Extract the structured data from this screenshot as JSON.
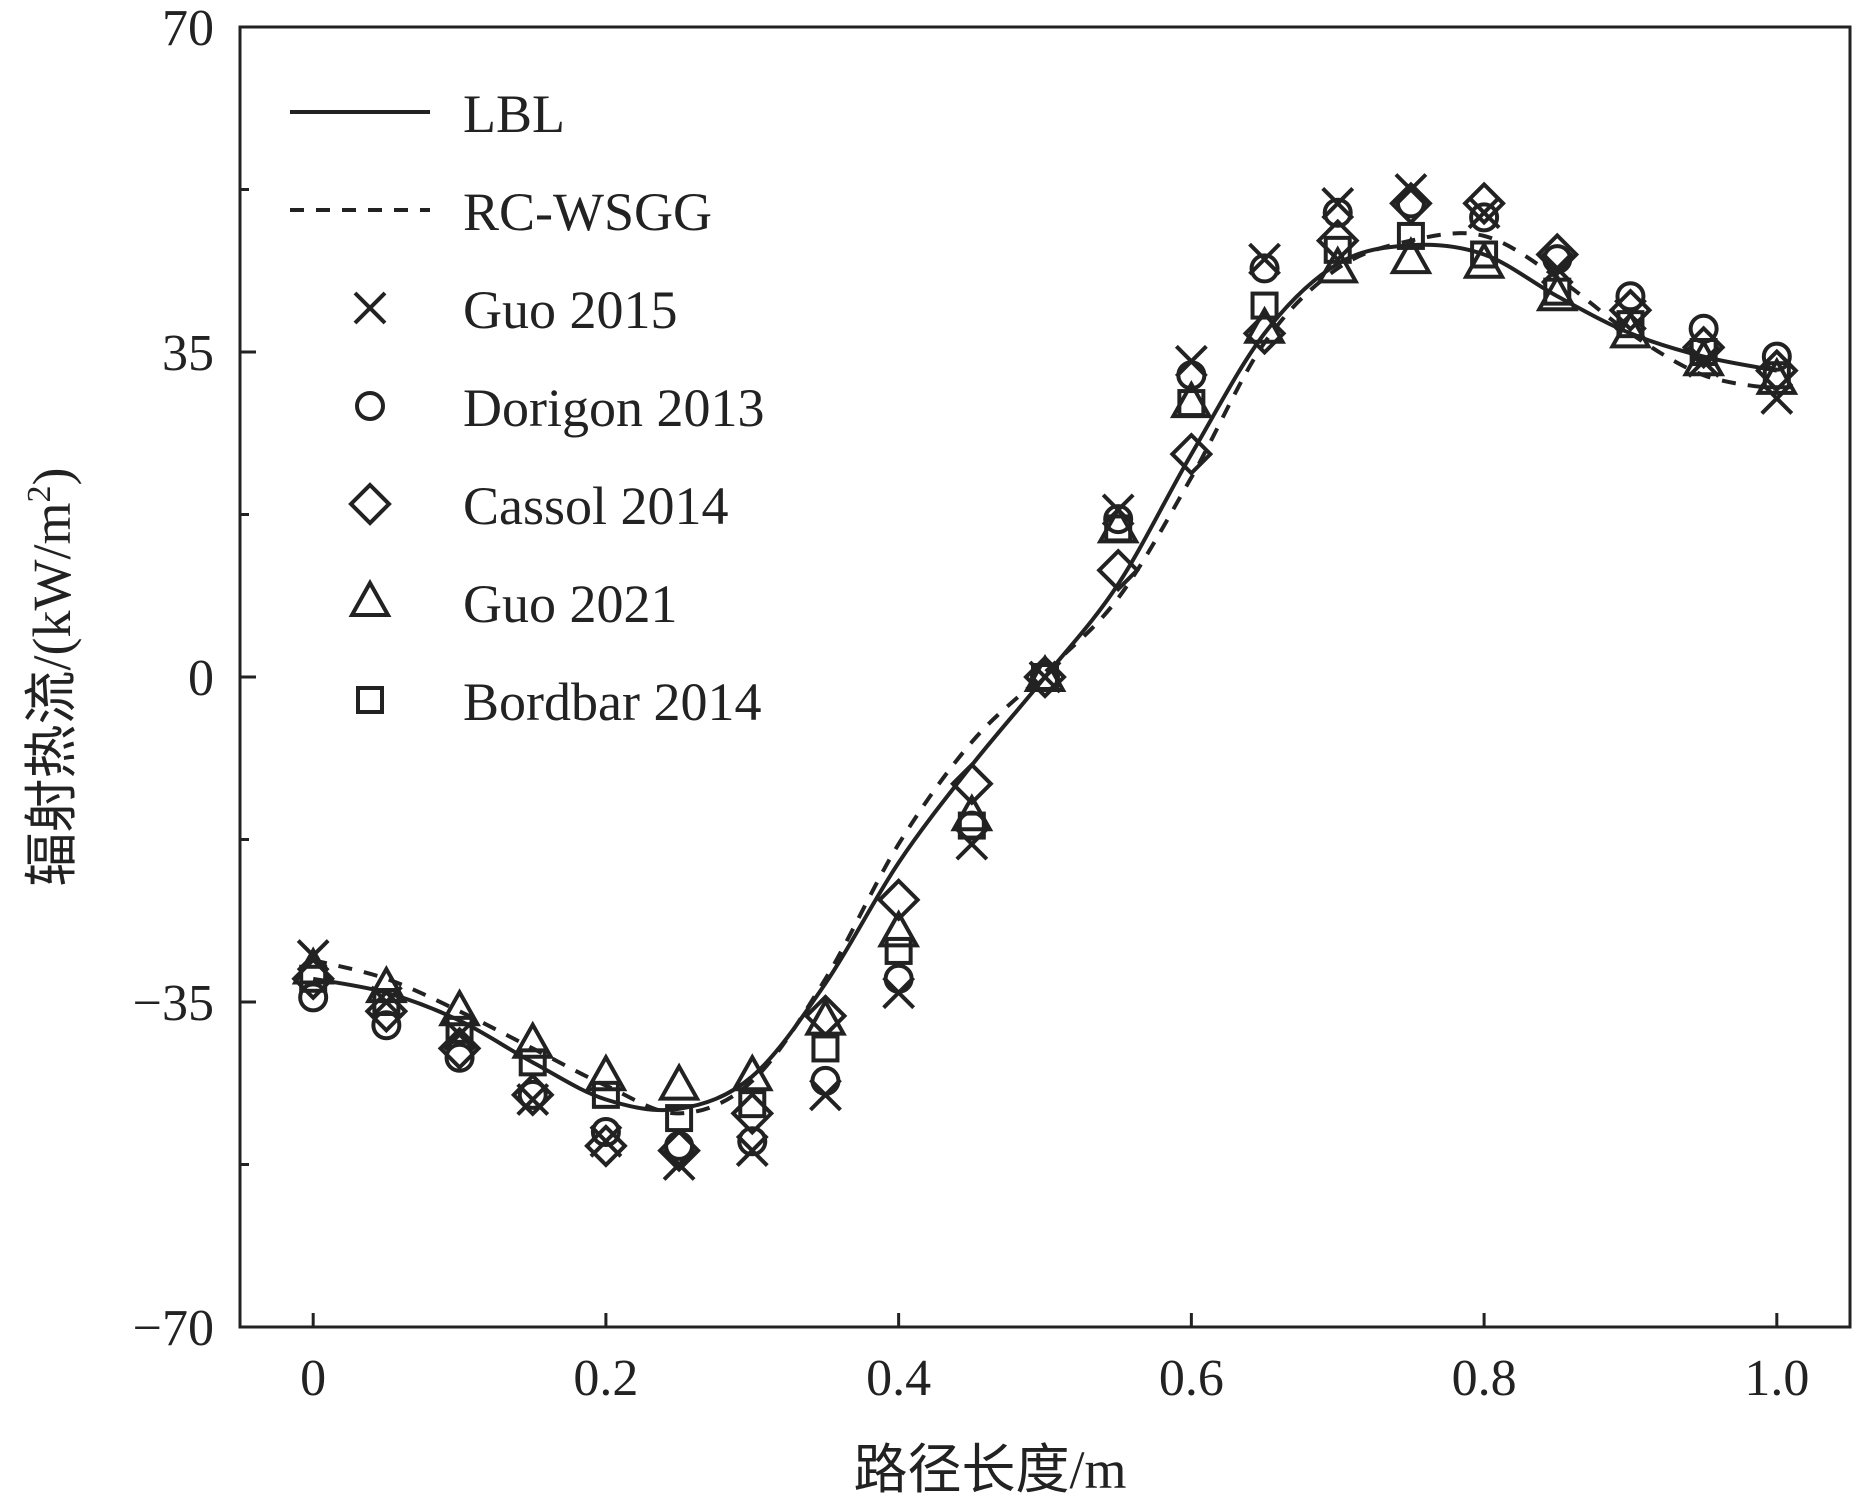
{
  "chart_data": {
    "type": "line",
    "title": "",
    "xlabel": "路径长度/m",
    "ylabel": "辐射热流/(kW/m²)",
    "ylabel_parts": [
      "辐射热流/(kW/m",
      "2",
      ")"
    ],
    "xlim": [
      -0.05,
      1.05
    ],
    "ylim": [
      -70,
      70
    ],
    "x_ticks": [
      0,
      0.2,
      0.4,
      0.6,
      0.8,
      1.0
    ],
    "x_tick_labels": [
      "0",
      "0.2",
      "0.4",
      "0.6",
      "0.8",
      "1.0"
    ],
    "y_ticks": [
      -70,
      -35,
      0,
      35,
      70
    ],
    "y_tick_labels": [
      "−70",
      "−35",
      "0",
      "35",
      "70"
    ],
    "y_minor_ticks": [
      -52.5,
      -17.5,
      17.5,
      52.5
    ],
    "grid": false,
    "legend_position": "top-left",
    "series": [
      {
        "name": "LBL",
        "style": "solid",
        "x": [
          0,
          0.05,
          0.1,
          0.15,
          0.2,
          0.25,
          0.3,
          0.35,
          0.4,
          0.45,
          0.5,
          0.55,
          0.6,
          0.65,
          0.7,
          0.75,
          0.8,
          0.85,
          0.9,
          0.95,
          1.0
        ],
        "y": [
          -32.5,
          -34,
          -37,
          -41.5,
          -45.5,
          -46.5,
          -43,
          -33,
          -20,
          -9.5,
          0,
          10,
          24,
          37,
          44.5,
          46.5,
          45.5,
          41,
          37,
          34.5,
          33
        ]
      },
      {
        "name": "RC-WSGG",
        "style": "dashed",
        "x": [
          0,
          0.05,
          0.1,
          0.15,
          0.2,
          0.25,
          0.3,
          0.35,
          0.4,
          0.45,
          0.5,
          0.55,
          0.6,
          0.65,
          0.7,
          0.75,
          0.8,
          0.85,
          0.9,
          0.95,
          1.0
        ],
        "y": [
          -30.5,
          -32.5,
          -36,
          -40,
          -44,
          -47,
          -43.5,
          -32.5,
          -18,
          -7,
          0.5,
          8.5,
          21.5,
          36,
          44,
          47,
          47.5,
          43,
          37,
          32.5,
          31
        ]
      },
      {
        "name": "Guo 2015",
        "marker": "x",
        "x": [
          0,
          0.05,
          0.1,
          0.15,
          0.2,
          0.25,
          0.3,
          0.35,
          0.4,
          0.45,
          0.5,
          0.55,
          0.6,
          0.65,
          0.7,
          0.75,
          0.8,
          0.85,
          0.9,
          0.95,
          1.0
        ],
        "y": [
          -30,
          -35,
          -38.5,
          -45.5,
          -50,
          -52.5,
          -51,
          -45,
          -34,
          -18,
          0,
          18,
          34,
          45,
          51,
          52.5,
          50,
          44,
          39,
          34,
          30
        ]
      },
      {
        "name": "Dorigon 2013",
        "marker": "circle",
        "x": [
          0,
          0.05,
          0.1,
          0.15,
          0.2,
          0.25,
          0.3,
          0.35,
          0.4,
          0.45,
          0.5,
          0.55,
          0.6,
          0.65,
          0.7,
          0.75,
          0.8,
          0.85,
          0.9,
          0.95,
          1.0
        ],
        "y": [
          -34.5,
          -37.5,
          -41,
          -45,
          -49,
          -50.5,
          -50,
          -43.5,
          -32.5,
          -16,
          0,
          17,
          32.5,
          44,
          50,
          51,
          49.5,
          45,
          41,
          37.5,
          34.5
        ]
      },
      {
        "name": "Cassol 2014",
        "marker": "diamond",
        "x": [
          0,
          0.05,
          0.1,
          0.15,
          0.2,
          0.25,
          0.3,
          0.35,
          0.4,
          0.45,
          0.5,
          0.55,
          0.6,
          0.65,
          0.7,
          0.75,
          0.8,
          0.85,
          0.9,
          0.95,
          1.0
        ],
        "y": [
          -32.5,
          -36,
          -40,
          -45,
          -50.5,
          -51,
          -47,
          -36.5,
          -24,
          -11.5,
          0,
          11.5,
          24,
          37,
          47,
          51,
          51,
          45.5,
          39.5,
          35.5,
          33
        ]
      },
      {
        "name": "Guo 2021",
        "marker": "triangle",
        "x": [
          0,
          0.05,
          0.1,
          0.15,
          0.2,
          0.25,
          0.3,
          0.35,
          0.4,
          0.45,
          0.5,
          0.55,
          0.6,
          0.65,
          0.7,
          0.75,
          0.8,
          0.85,
          0.9,
          0.95,
          1.0
        ],
        "y": [
          -31.5,
          -33.5,
          -36,
          -39.5,
          -43,
          -44,
          -43,
          -37,
          -27.5,
          -15,
          0,
          16,
          29.5,
          37.5,
          44,
          45,
          44.5,
          41,
          37,
          34,
          32
        ]
      },
      {
        "name": "Bordbar 2014",
        "marker": "square",
        "x": [
          0,
          0.05,
          0.1,
          0.15,
          0.2,
          0.25,
          0.3,
          0.35,
          0.4,
          0.45,
          0.5,
          0.55,
          0.6,
          0.65,
          0.7,
          0.75,
          0.8,
          0.85,
          0.9,
          0.95,
          1.0
        ],
        "y": [
          -32.5,
          -35,
          -38,
          -41.5,
          -45,
          -47.5,
          -46,
          -40,
          -29.5,
          -16,
          0,
          16,
          29.5,
          40,
          46,
          47.5,
          45.5,
          41.5,
          38,
          35,
          32.5
        ]
      }
    ]
  }
}
